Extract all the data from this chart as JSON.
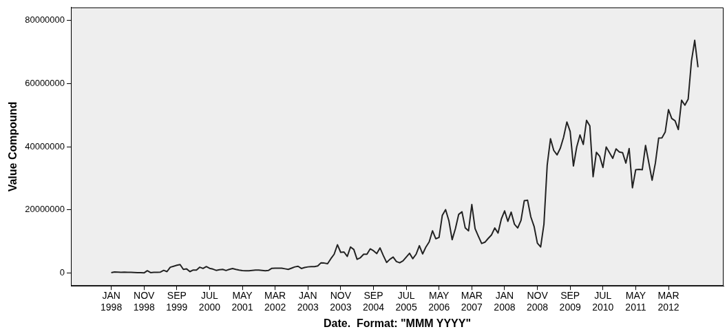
{
  "chart_data": {
    "type": "line",
    "xlabel": "Date.  Format: \"MMM YYYY\"",
    "ylabel": "Value Compound",
    "categories": [
      "JAN 1998",
      null,
      null,
      null,
      null,
      null,
      null,
      null,
      null,
      null,
      "NOV 1998",
      null,
      null,
      null,
      null,
      null,
      null,
      null,
      null,
      null,
      "SEP 1999",
      null,
      null,
      null,
      null,
      null,
      null,
      null,
      null,
      null,
      "JUL 2000",
      null,
      null,
      null,
      null,
      null,
      null,
      null,
      null,
      null,
      "MAY 2001",
      null,
      null,
      null,
      null,
      null,
      null,
      null,
      null,
      null,
      "MAR 2002",
      null,
      null,
      null,
      null,
      null,
      null,
      null,
      null,
      null,
      "JAN 2003",
      null,
      null,
      null,
      null,
      null,
      null,
      null,
      null,
      null,
      "NOV 2003",
      null,
      null,
      null,
      null,
      null,
      null,
      null,
      null,
      null,
      "SEP 2004",
      null,
      null,
      null,
      null,
      null,
      null,
      null,
      null,
      null,
      "JUL 2005",
      null,
      null,
      null,
      null,
      null,
      null,
      null,
      null,
      null,
      "MAY 2006",
      null,
      null,
      null,
      null,
      null,
      null,
      null,
      null,
      null,
      "MAR 2007",
      null,
      null,
      null,
      null,
      null,
      null,
      null,
      null,
      null,
      "JAN 2008",
      null,
      null,
      null,
      null,
      null,
      null,
      null,
      null,
      null,
      "NOV 2008",
      null,
      null,
      null,
      null,
      null,
      null,
      null,
      null,
      null,
      "SEP 2009",
      null,
      null,
      null,
      null,
      null,
      null,
      null,
      null,
      null,
      "JUL 2010",
      null,
      null,
      null,
      null,
      null,
      null,
      null,
      null,
      null,
      "MAY 2011",
      null,
      null,
      null,
      null,
      null,
      null,
      null,
      null,
      null,
      "MAR 2012",
      null,
      null,
      null,
      null,
      null,
      null,
      null,
      null,
      null
    ],
    "values": [
      200000,
      400000,
      350000,
      300000,
      350000,
      300000,
      300000,
      250000,
      200000,
      200000,
      100000,
      800000,
      200000,
      300000,
      300000,
      350000,
      900000,
      500000,
      1900000,
      2200000,
      2500000,
      2750000,
      1200000,
      1350000,
      500000,
      1000000,
      1000000,
      1900000,
      1500000,
      2100000,
      1550000,
      1300000,
      900000,
      1100000,
      1200000,
      850000,
      1200000,
      1500000,
      1200000,
      1000000,
      850000,
      800000,
      800000,
      900000,
      1000000,
      1000000,
      900000,
      800000,
      900000,
      1550000,
      1600000,
      1600000,
      1600000,
      1400000,
      1200000,
      1600000,
      2000000,
      2200000,
      1500000,
      1800000,
      2000000,
      2100000,
      2100000,
      2300000,
      3300000,
      3200000,
      3000000,
      4600000,
      6000000,
      9000000,
      6600000,
      6700000,
      5300000,
      8300000,
      7500000,
      4400000,
      4900000,
      6000000,
      6000000,
      7700000,
      7100000,
      6200000,
      8000000,
      5600000,
      3400000,
      4400000,
      5100000,
      3700000,
      3300000,
      3900000,
      5100000,
      6300000,
      4600000,
      6000000,
      8700000,
      6100000,
      8300000,
      9900000,
      13400000,
      10900000,
      11300000,
      18300000,
      20100000,
      16600000,
      10600000,
      14100000,
      18600000,
      19400000,
      14300000,
      13400000,
      21700000,
      14100000,
      11700000,
      9400000,
      9800000,
      11000000,
      12100000,
      14300000,
      12700000,
      17100000,
      19700000,
      16400000,
      19300000,
      15500000,
      14300000,
      16700000,
      22900000,
      23100000,
      17800000,
      14800000,
      9500000,
      8300000,
      15500000,
      34200000,
      42500000,
      38800000,
      37400000,
      39500000,
      43000000,
      47800000,
      44800000,
      33900000,
      39900000,
      43700000,
      40700000,
      48300000,
      46600000,
      30500000,
      38200000,
      37000000,
      33400000,
      39900000,
      38100000,
      36300000,
      39300000,
      38300000,
      38100000,
      34800000,
      39400000,
      27000000,
      32700000,
      32800000,
      32700000,
      40400000,
      34900000,
      29400000,
      34800000,
      42700000,
      42800000,
      44600000,
      51700000,
      48900000,
      48200000,
      45400000,
      54700000,
      53100000,
      55000000,
      67000000,
      73600000,
      65100000
    ],
    "color": "#222222",
    "marker": "none",
    "ylim": [
      -4000000,
      84000000
    ],
    "yticks": [
      0,
      20000000,
      40000000,
      60000000,
      80000000
    ]
  }
}
